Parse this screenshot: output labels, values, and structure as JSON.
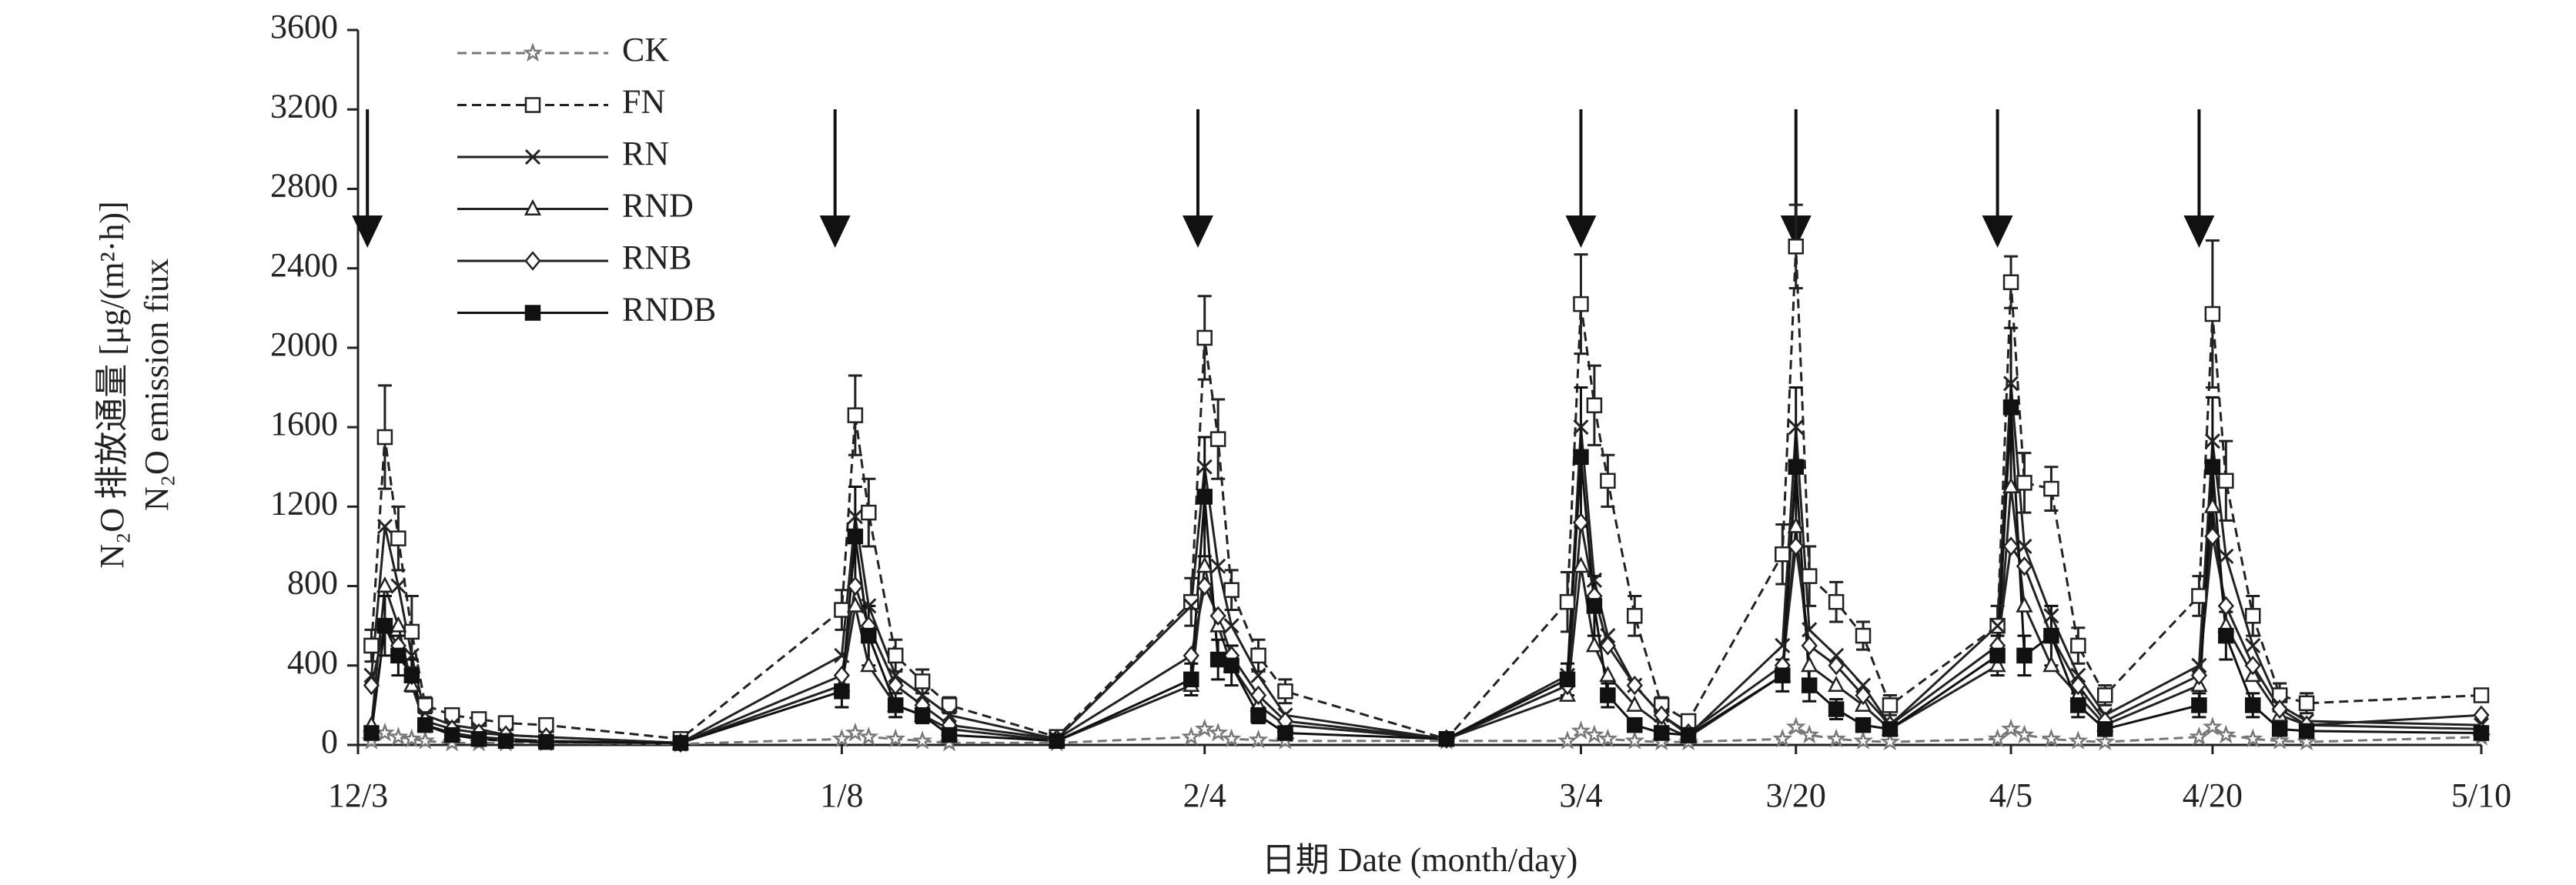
{
  "chart_data": {
    "type": "line",
    "y_label": "N₂O 排放通量 [μg/(m²·h)]",
    "y_label_2": "N₂O emission fiux",
    "x_label": "日期 Date (month/day)",
    "xlim": [
      0,
      158
    ],
    "xticks": [
      {
        "value": 0,
        "label": "12/3"
      },
      {
        "value": 36,
        "label": "1/8"
      },
      {
        "value": 63,
        "label": "2/4"
      },
      {
        "value": 91,
        "label": "3/4"
      },
      {
        "value": 107,
        "label": "3/20"
      },
      {
        "value": 123,
        "label": "4/5"
      },
      {
        "value": 138,
        "label": "4/20"
      },
      {
        "value": 158,
        "label": "5/10"
      }
    ],
    "ylim": [
      0,
      3600
    ],
    "yticks": [
      0,
      400,
      800,
      1200,
      1600,
      2000,
      2400,
      2800,
      3200,
      3600
    ],
    "arrows_x": [
      0.7,
      35.5,
      62.5,
      91,
      107,
      122,
      137
    ],
    "legend": "upper left",
    "x": [
      1,
      2,
      3,
      4,
      5,
      7,
      9,
      11,
      14,
      24,
      36,
      37,
      38,
      40,
      42,
      44,
      52,
      62,
      63,
      64,
      65,
      67,
      69,
      81,
      90,
      91,
      92,
      93,
      95,
      97,
      99,
      106,
      107,
      108,
      110,
      112,
      114,
      122,
      123,
      124,
      126,
      128,
      130,
      137,
      138,
      139,
      141,
      143,
      145,
      158
    ],
    "series": [
      {
        "name": "CK",
        "color": "#777777",
        "dashed": true,
        "marker": "star",
        "values": [
          20,
          60,
          40,
          30,
          20,
          10,
          10,
          10,
          10,
          5,
          30,
          60,
          40,
          30,
          20,
          10,
          10,
          40,
          80,
          60,
          30,
          25,
          20,
          20,
          20,
          70,
          50,
          30,
          20,
          15,
          15,
          30,
          90,
          50,
          30,
          20,
          15,
          30,
          80,
          50,
          30,
          20,
          15,
          40,
          90,
          50,
          30,
          20,
          15,
          40
        ]
      },
      {
        "name": "FN",
        "color": "#222222",
        "dashed": true,
        "marker": "square-open",
        "values": [
          500,
          1550,
          1040,
          570,
          200,
          150,
          130,
          110,
          100,
          30,
          680,
          1660,
          1170,
          450,
          320,
          200,
          40,
          720,
          2050,
          1540,
          780,
          450,
          270,
          30,
          720,
          2220,
          1710,
          1330,
          650,
          200,
          120,
          960,
          2510,
          850,
          720,
          550,
          200,
          600,
          2330,
          1320,
          1290,
          500,
          250,
          750,
          2170,
          1330,
          650,
          250,
          210,
          250
        ],
        "errors": [
          80,
          260,
          160,
          180,
          40,
          30,
          20,
          20,
          20,
          10,
          100,
          200,
          170,
          80,
          60,
          40,
          10,
          120,
          210,
          200,
          100,
          80,
          60,
          10,
          150,
          250,
          200,
          130,
          100,
          40,
          30,
          150,
          210,
          150,
          100,
          70,
          50,
          100,
          130,
          150,
          110,
          90,
          50,
          100,
          370,
          200,
          100,
          60,
          50,
          30
        ]
      },
      {
        "name": "RN",
        "color": "#222222",
        "dashed": false,
        "marker": "x",
        "values": [
          350,
          1100,
          800,
          450,
          150,
          100,
          80,
          50,
          40,
          10,
          450,
          1150,
          700,
          350,
          250,
          150,
          30,
          700,
          1400,
          900,
          600,
          350,
          150,
          30,
          350,
          1600,
          830,
          550,
          300,
          150,
          50,
          500,
          1600,
          580,
          450,
          300,
          100,
          600,
          1820,
          1000,
          650,
          350,
          150,
          400,
          1530,
          950,
          500,
          200,
          120,
          100
        ]
      },
      {
        "name": "RND",
        "color": "#222222",
        "dashed": false,
        "marker": "triangle-open",
        "values": [
          100,
          800,
          600,
          300,
          100,
          60,
          40,
          30,
          20,
          10,
          300,
          700,
          400,
          200,
          150,
          80,
          20,
          300,
          900,
          600,
          400,
          200,
          100,
          30,
          250,
          900,
          500,
          350,
          200,
          100,
          40,
          350,
          1100,
          400,
          300,
          200,
          80,
          400,
          1300,
          700,
          400,
          250,
          100,
          300,
          1200,
          600,
          350,
          150,
          100,
          80
        ]
      },
      {
        "name": "RNB",
        "color": "#222222",
        "dashed": false,
        "marker": "diamond-open",
        "values": [
          300,
          600,
          500,
          350,
          120,
          80,
          60,
          50,
          40,
          10,
          350,
          800,
          600,
          300,
          200,
          100,
          30,
          450,
          800,
          650,
          450,
          250,
          120,
          30,
          300,
          1120,
          750,
          500,
          300,
          150,
          60,
          400,
          1000,
          500,
          400,
          250,
          100,
          500,
          1000,
          900,
          550,
          300,
          120,
          350,
          1050,
          700,
          400,
          180,
          100,
          150
        ]
      },
      {
        "name": "RNDB",
        "color": "#111111",
        "dashed": false,
        "marker": "square-filled",
        "values": [
          60,
          600,
          450,
          350,
          100,
          50,
          30,
          20,
          15,
          10,
          270,
          1050,
          550,
          200,
          150,
          50,
          20,
          330,
          1250,
          430,
          400,
          150,
          60,
          30,
          330,
          1450,
          700,
          250,
          100,
          60,
          50,
          350,
          1400,
          300,
          180,
          100,
          80,
          450,
          1700,
          450,
          550,
          200,
          80,
          200,
          1400,
          550,
          200,
          80,
          70,
          60
        ],
        "errors": [
          20,
          150,
          100,
          80,
          30,
          20,
          10,
          10,
          10,
          5,
          80,
          250,
          150,
          60,
          40,
          20,
          10,
          80,
          300,
          100,
          100,
          40,
          20,
          10,
          80,
          350,
          150,
          60,
          30,
          20,
          10,
          80,
          400,
          80,
          50,
          30,
          20,
          100,
          400,
          100,
          150,
          60,
          20,
          60,
          350,
          120,
          60,
          20,
          20,
          20
        ]
      }
    ]
  }
}
